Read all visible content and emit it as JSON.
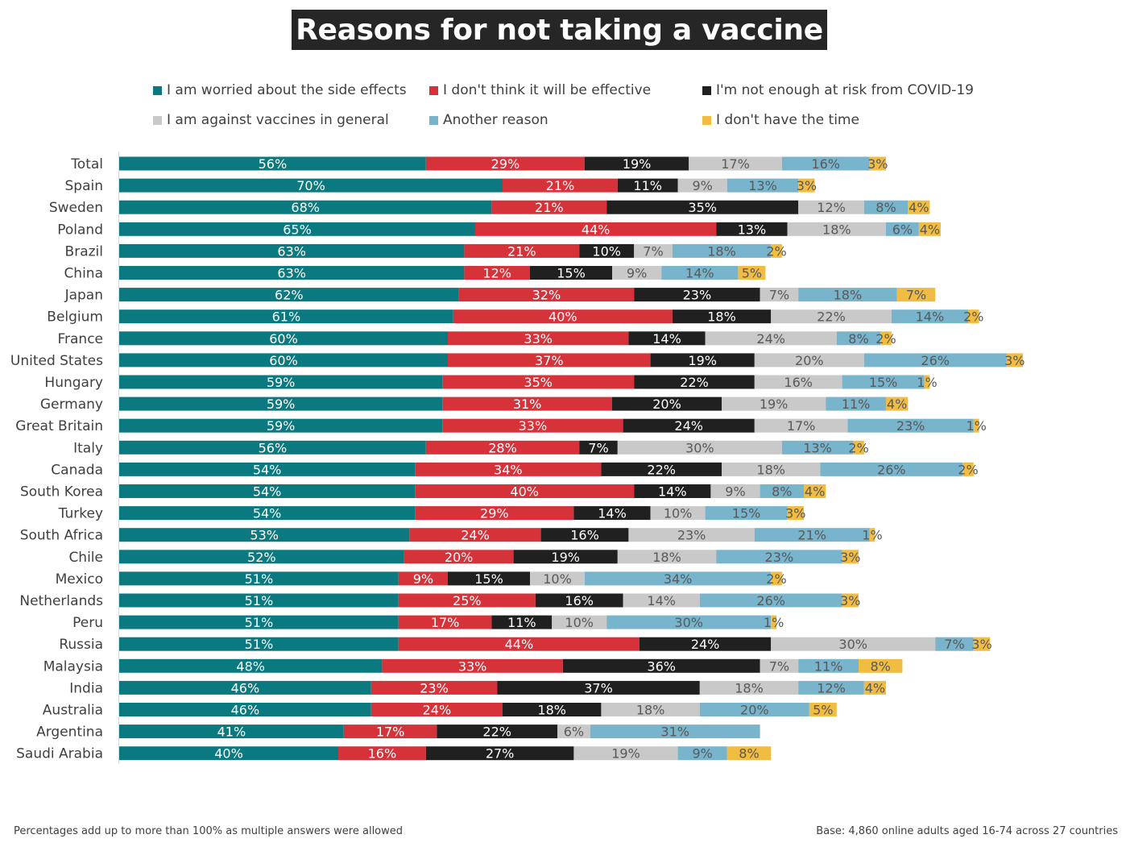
{
  "colors": {
    "side_effects": "#0b7a80",
    "not_effective": "#d6323a",
    "not_at_risk": "#202020",
    "against_vaccines": "#c9c9c9",
    "another_reason": "#78b4cb",
    "no_time": "#f0bc42"
  },
  "chart_data": {
    "type": "bar",
    "orientation": "horizontal",
    "stacked": true,
    "title": "Reasons for not taking a vaccine",
    "xlabel": "",
    "ylabel": "",
    "legend_position": "top",
    "categories": [
      "Total",
      "Spain",
      "Sweden",
      "Poland",
      "Brazil",
      "China",
      "Japan",
      "Belgium",
      "France",
      "United States",
      "Hungary",
      "Germany",
      "Great Britain",
      "Italy",
      "Canada",
      "South Korea",
      "Turkey",
      "South Africa",
      "Chile",
      "Mexico",
      "Netherlands",
      "Peru",
      "Russia",
      "Malaysia",
      "India",
      "Australia",
      "Argentina",
      "Saudi Arabia"
    ],
    "series": [
      {
        "key": "side_effects",
        "name": "I am worried about the side effects",
        "values": [
          56,
          70,
          68,
          65,
          63,
          63,
          62,
          61,
          60,
          60,
          59,
          59,
          59,
          56,
          54,
          54,
          54,
          53,
          52,
          51,
          51,
          51,
          51,
          48,
          46,
          46,
          41,
          40
        ]
      },
      {
        "key": "not_effective",
        "name": "I don't think it will be effective",
        "values": [
          29,
          21,
          21,
          44,
          21,
          12,
          32,
          40,
          33,
          37,
          35,
          31,
          33,
          28,
          34,
          40,
          29,
          24,
          20,
          9,
          25,
          17,
          44,
          33,
          23,
          24,
          17,
          16
        ]
      },
      {
        "key": "not_at_risk",
        "name": "I'm not enough at risk from COVID-19",
        "values": [
          19,
          11,
          35,
          13,
          10,
          15,
          23,
          18,
          14,
          19,
          22,
          20,
          24,
          7,
          22,
          14,
          14,
          16,
          19,
          15,
          16,
          11,
          24,
          36,
          37,
          18,
          22,
          27
        ]
      },
      {
        "key": "against_vaccines",
        "name": "I am against vaccines in general",
        "values": [
          17,
          9,
          12,
          18,
          7,
          9,
          7,
          22,
          24,
          20,
          16,
          19,
          17,
          30,
          18,
          9,
          10,
          23,
          18,
          10,
          14,
          10,
          30,
          7,
          18,
          18,
          6,
          19
        ]
      },
      {
        "key": "another_reason",
        "name": "Another reason",
        "values": [
          16,
          13,
          8,
          6,
          18,
          14,
          18,
          14,
          8,
          26,
          15,
          11,
          23,
          13,
          26,
          8,
          15,
          21,
          23,
          34,
          26,
          30,
          7,
          11,
          12,
          20,
          31,
          9
        ]
      },
      {
        "key": "no_time",
        "name": "I don't have the time",
        "values": [
          3,
          3,
          4,
          4,
          2,
          5,
          7,
          2,
          2,
          3,
          1,
          4,
          1,
          2,
          2,
          4,
          3,
          1,
          3,
          2,
          3,
          1,
          3,
          8,
          4,
          5,
          0,
          8
        ]
      }
    ],
    "value_suffix": "%"
  },
  "footnotes": {
    "left": "Percentages add up to more than 100% as multiple answers were allowed",
    "right": "Base: 4,860 online adults aged 16-74 across 27 countries"
  }
}
